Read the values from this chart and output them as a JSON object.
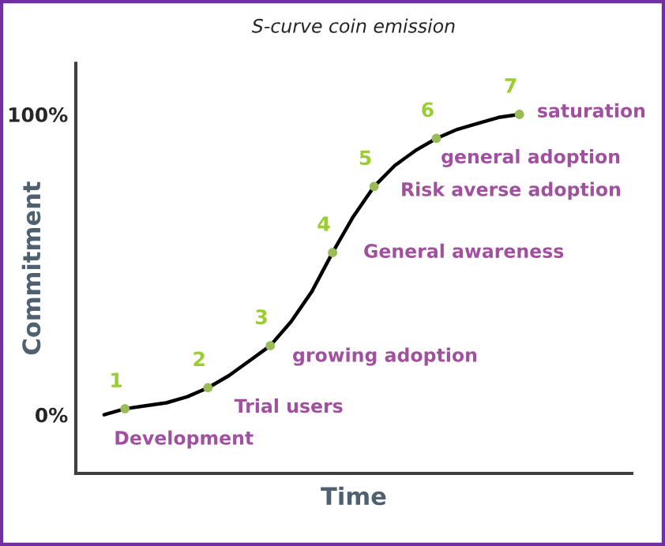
{
  "chart_data": {
    "type": "line",
    "title": "S-curve coin emission",
    "xlabel": "Time",
    "ylabel": "Commitment",
    "categories": [
      null,
      null,
      null,
      null,
      null,
      null,
      null,
      null,
      null,
      null,
      null,
      null,
      null,
      null,
      null,
      null,
      null,
      null,
      null,
      null,
      null
    ],
    "ylim": [
      -19.5,
      117
    ],
    "yticks": [
      {
        "value": 0,
        "label": "0%"
      },
      {
        "value": 100,
        "label": "100%"
      }
    ],
    "tick_labels": "y",
    "grid": false,
    "legend": false,
    "series": [
      {
        "color": "#000000",
        "values": [
          0,
          2,
          3,
          4,
          6,
          9,
          13,
          18,
          23,
          31,
          41,
          54,
          66,
          76,
          83,
          88,
          92,
          95,
          97,
          99,
          100
        ]
      },
      {
        "type": "scatter",
        "color": "#9bbb59",
        "values": [
          null,
          2,
          null,
          null,
          null,
          9,
          null,
          null,
          23,
          null,
          null,
          54,
          null,
          76,
          null,
          null,
          92,
          null,
          null,
          null,
          100
        ]
      }
    ],
    "annotations": [
      "1",
      "Development",
      "2",
      "Trial users",
      "3",
      "growing adoption",
      "4",
      "General awareness",
      "5",
      "Risk averse adoption",
      "6",
      "general adoption",
      "7",
      "saturation"
    ]
  }
}
